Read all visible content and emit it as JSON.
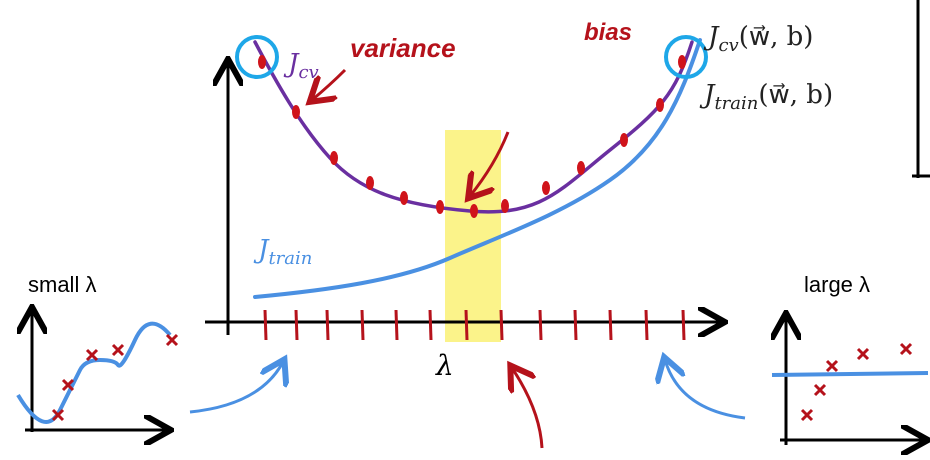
{
  "labels": {
    "variance": "variance",
    "bias": "bias",
    "jcv_short": {
      "main": "J",
      "sub": "cv"
    },
    "jtrain_short": {
      "main": "J",
      "sub": "train"
    },
    "jcv_full": {
      "main": "J",
      "sub": "cv",
      "args": "(w⃗, b)"
    },
    "jtrain_full": {
      "main": "J",
      "sub": "train",
      "args": "(w⃗, b)"
    },
    "x_axis": "λ",
    "small_lambda": "small λ",
    "large_lambda": "large λ"
  },
  "colors": {
    "jcv_curve": "#6a2fa0",
    "jtrain_curve": "#4a90e2",
    "annotation_red": "#b5121b",
    "highlight": "#fbf38a",
    "axis": "#000000"
  }
}
